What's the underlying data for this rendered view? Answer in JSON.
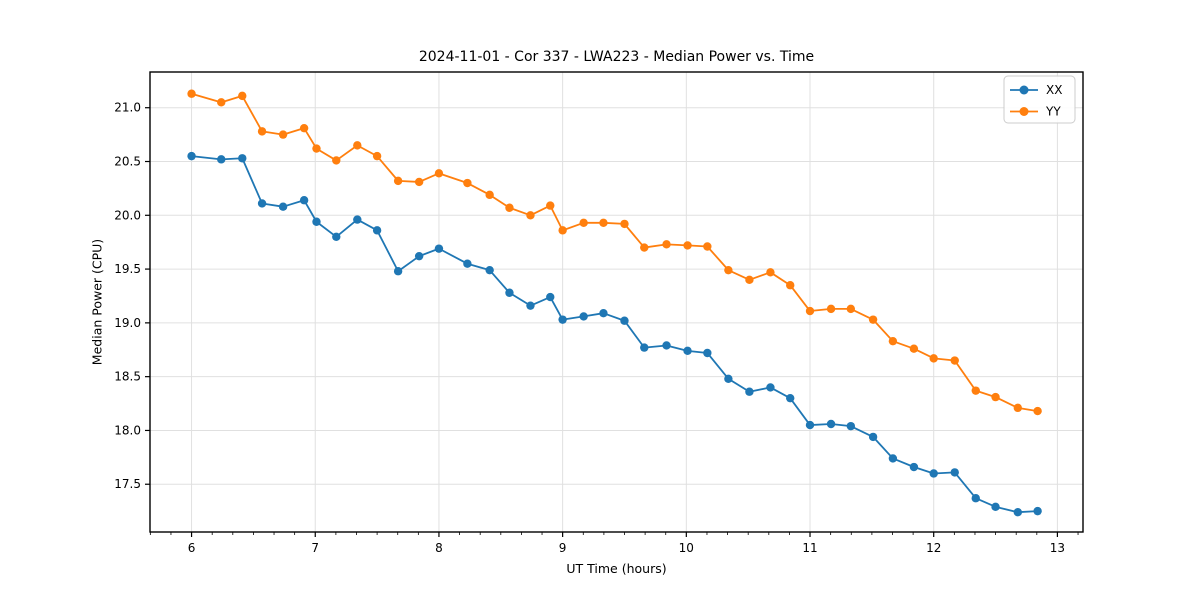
{
  "chart_data": {
    "type": "line",
    "title": "2024-11-01 - Cor 337 - LWA223 - Median Power vs. Time",
    "xlabel": "UT Time (hours)",
    "ylabel": "Median Power (CPU)",
    "xlim": [
      5.664,
      13.207
    ],
    "ylim": [
      17.056,
      21.332
    ],
    "x_ticks": [
      6,
      7,
      8,
      9,
      10,
      11,
      12,
      13
    ],
    "y_ticks": [
      17.5,
      18.0,
      18.5,
      19.0,
      19.5,
      20.0,
      20.5,
      21.0
    ],
    "x_minor_step": 0.16667,
    "grid": true,
    "grid_color": "#e0e0e0",
    "spine_color": "#000000",
    "background_color": "#ffffff",
    "legend_position": "upper right",
    "legend_border_color": "#cccccc",
    "x": [
      6.0,
      6.24,
      6.41,
      6.57,
      6.74,
      6.91,
      7.01,
      7.17,
      7.34,
      7.5,
      7.67,
      7.84,
      8.0,
      8.23,
      8.41,
      8.57,
      8.74,
      8.9,
      9.0,
      9.17,
      9.33,
      9.5,
      9.66,
      9.84,
      10.01,
      10.17,
      10.34,
      10.51,
      10.68,
      10.84,
      11.0,
      11.17,
      11.33,
      11.51,
      11.67,
      11.84,
      12.0,
      12.17,
      12.34,
      12.5,
      12.68,
      12.84
    ],
    "series": [
      {
        "name": "XX",
        "color": "#1f77b4",
        "values": [
          20.55,
          20.52,
          20.53,
          20.11,
          20.08,
          20.14,
          19.94,
          19.8,
          19.96,
          19.86,
          19.48,
          19.62,
          19.69,
          19.55,
          19.49,
          19.28,
          19.16,
          19.24,
          19.03,
          19.06,
          19.09,
          19.02,
          18.77,
          18.79,
          18.74,
          18.72,
          18.48,
          18.36,
          18.4,
          18.3,
          18.05,
          18.06,
          18.04,
          17.94,
          17.74,
          17.66,
          17.6,
          17.61,
          17.37,
          17.29,
          17.24,
          17.25
        ]
      },
      {
        "name": "YY",
        "color": "#ff7f0e",
        "values": [
          21.13,
          21.05,
          21.11,
          20.78,
          20.75,
          20.81,
          20.62,
          20.51,
          20.65,
          20.55,
          20.32,
          20.31,
          20.39,
          20.3,
          20.19,
          20.07,
          20.0,
          20.09,
          19.86,
          19.93,
          19.93,
          19.92,
          19.7,
          19.73,
          19.72,
          19.71,
          19.49,
          19.4,
          19.47,
          19.35,
          19.11,
          19.13,
          19.13,
          19.03,
          18.83,
          18.76,
          18.67,
          18.65,
          18.37,
          18.31,
          18.21,
          18.18
        ]
      }
    ]
  }
}
